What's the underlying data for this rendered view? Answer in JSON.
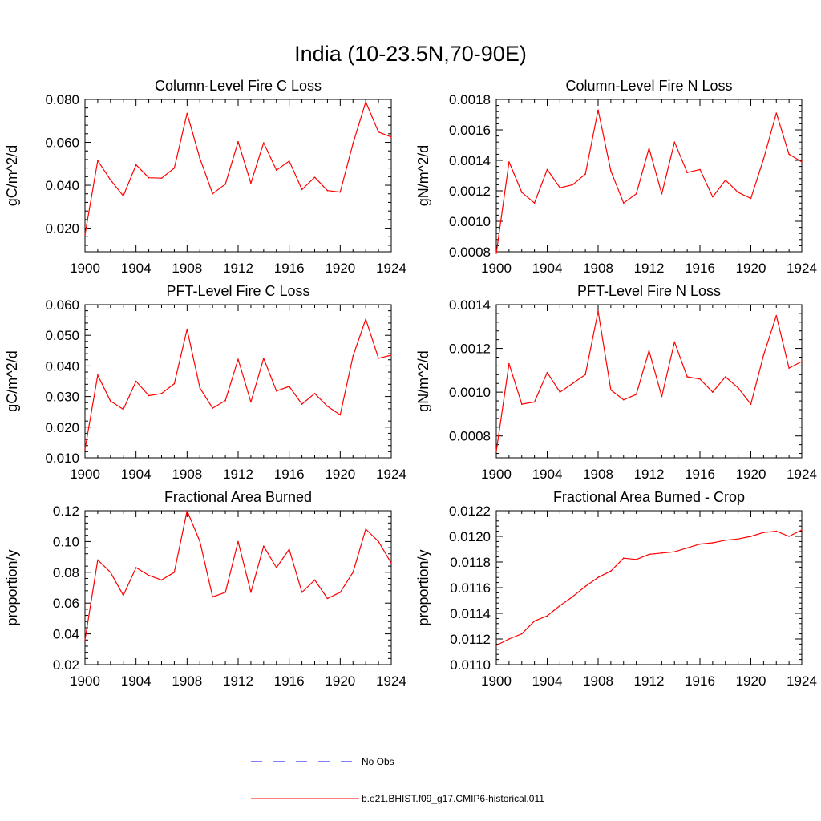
{
  "figure": {
    "title": "India (10-23.5N,70-90E)"
  },
  "legend": {
    "items": [
      {
        "label": "No Obs",
        "color": "#0000ff",
        "dash": "dashed"
      },
      {
        "label": "b.e21.BHIST.f09_g17.CMIP6-historical.011",
        "color": "#ff0000",
        "dash": "solid"
      }
    ]
  },
  "chart_data": [
    {
      "type": "line",
      "title": "Column-Level Fire C Loss",
      "xlabel": "",
      "ylabel": "gC/m^2/d",
      "xlim": [
        1900,
        1924
      ],
      "ylim": [
        0.009,
        0.08
      ],
      "xticks": [
        1900,
        1904,
        1908,
        1912,
        1916,
        1920,
        1924
      ],
      "xtick_labels": [
        "1900",
        "1904",
        "1908",
        "1912",
        "1916",
        "1920",
        "1924"
      ],
      "yticks": [
        0.02,
        0.04,
        0.06,
        0.08
      ],
      "ytick_labels": [
        "0.020",
        "0.040",
        "0.060",
        "0.080"
      ],
      "x": [
        1900,
        1901,
        1902,
        1903,
        1904,
        1905,
        1906,
        1907,
        1908,
        1909,
        1910,
        1911,
        1912,
        1913,
        1914,
        1915,
        1916,
        1917,
        1918,
        1919,
        1920,
        1921,
        1922,
        1923,
        1924
      ],
      "series": [
        {
          "color": "#ff0000",
          "values": [
            0.017,
            0.0515,
            0.0425,
            0.035,
            0.0495,
            0.0435,
            0.0433,
            0.048,
            0.0735,
            0.0525,
            0.036,
            0.0405,
            0.0603,
            0.041,
            0.0598,
            0.047,
            0.0513,
            0.038,
            0.0437,
            0.0375,
            0.0368,
            0.0595,
            0.0788,
            0.0648,
            0.0625
          ]
        }
      ]
    },
    {
      "type": "line",
      "title": "Column-Level Fire N Loss",
      "xlabel": "",
      "ylabel": "gN/m^2/d",
      "xlim": [
        1900,
        1924
      ],
      "ylim": [
        0.0008,
        0.0018
      ],
      "xticks": [
        1900,
        1904,
        1908,
        1912,
        1916,
        1920,
        1924
      ],
      "xtick_labels": [
        "1900",
        "1904",
        "1908",
        "1912",
        "1916",
        "1920",
        "1924"
      ],
      "yticks": [
        0.0008,
        0.001,
        0.0012,
        0.0014,
        0.0016,
        0.0018
      ],
      "ytick_labels": [
        "0.0008",
        "0.0010",
        "0.0012",
        "0.0014",
        "0.0016",
        "0.0018"
      ],
      "x": [
        1900,
        1901,
        1902,
        1903,
        1904,
        1905,
        1906,
        1907,
        1908,
        1909,
        1910,
        1911,
        1912,
        1913,
        1914,
        1915,
        1916,
        1917,
        1918,
        1919,
        1920,
        1921,
        1922,
        1923,
        1924
      ],
      "series": [
        {
          "color": "#ff0000",
          "values": [
            0.00079,
            0.00139,
            0.00119,
            0.00112,
            0.00134,
            0.00122,
            0.00124,
            0.00131,
            0.00173,
            0.00133,
            0.00112,
            0.00118,
            0.00148,
            0.00118,
            0.00152,
            0.00132,
            0.00134,
            0.00116,
            0.00127,
            0.00119,
            0.00115,
            0.00141,
            0.00171,
            0.00144,
            0.00139
          ]
        }
      ]
    },
    {
      "type": "line",
      "title": "PFT-Level Fire C Loss",
      "xlabel": "",
      "ylabel": "gC/m^2/d",
      "xlim": [
        1900,
        1924
      ],
      "ylim": [
        0.01,
        0.06
      ],
      "xticks": [
        1900,
        1904,
        1908,
        1912,
        1916,
        1920,
        1924
      ],
      "xtick_labels": [
        "1900",
        "1904",
        "1908",
        "1912",
        "1916",
        "1920",
        "1924"
      ],
      "yticks": [
        0.01,
        0.02,
        0.03,
        0.04,
        0.05,
        0.06
      ],
      "ytick_labels": [
        "0.010",
        "0.020",
        "0.030",
        "0.040",
        "0.050",
        "0.060"
      ],
      "x": [
        1900,
        1901,
        1902,
        1903,
        1904,
        1905,
        1906,
        1907,
        1908,
        1909,
        1910,
        1911,
        1912,
        1913,
        1914,
        1915,
        1916,
        1917,
        1918,
        1919,
        1920,
        1921,
        1922,
        1923,
        1924
      ],
      "series": [
        {
          "color": "#ff0000",
          "values": [
            0.0128,
            0.037,
            0.0285,
            0.0258,
            0.035,
            0.0303,
            0.031,
            0.0342,
            0.052,
            0.0328,
            0.0262,
            0.0287,
            0.0422,
            0.0282,
            0.0425,
            0.0318,
            0.0333,
            0.0275,
            0.031,
            0.0268,
            0.024,
            0.0432,
            0.0553,
            0.0425,
            0.0435
          ]
        }
      ]
    },
    {
      "type": "line",
      "title": "PFT-Level Fire N Loss",
      "xlabel": "",
      "ylabel": "gN/m^2/d",
      "xlim": [
        1900,
        1924
      ],
      "ylim": [
        0.0007,
        0.0014
      ],
      "xticks": [
        1900,
        1904,
        1908,
        1912,
        1916,
        1920,
        1924
      ],
      "xtick_labels": [
        "1900",
        "1904",
        "1908",
        "1912",
        "1916",
        "1920",
        "1924"
      ],
      "yticks": [
        0.0008,
        0.001,
        0.0012,
        0.0014
      ],
      "ytick_labels": [
        "0.0008",
        "0.0010",
        "0.0012",
        "0.0014"
      ],
      "x": [
        1900,
        1901,
        1902,
        1903,
        1904,
        1905,
        1906,
        1907,
        1908,
        1909,
        1910,
        1911,
        1912,
        1913,
        1914,
        1915,
        1916,
        1917,
        1918,
        1919,
        1920,
        1921,
        1922,
        1923,
        1924
      ],
      "series": [
        {
          "color": "#ff0000",
          "values": [
            0.00073,
            0.00113,
            0.000945,
            0.000955,
            0.00109,
            0.001,
            0.00104,
            0.00108,
            0.00137,
            0.00101,
            0.000965,
            0.00099,
            0.00119,
            0.00098,
            0.00123,
            0.00107,
            0.00106,
            0.001,
            0.00107,
            0.00102,
            0.000945,
            0.00117,
            0.00135,
            0.00111,
            0.00114
          ]
        }
      ]
    },
    {
      "type": "line",
      "title": "Fractional Area Burned",
      "xlabel": "",
      "ylabel": "proportion/y",
      "xlim": [
        1900,
        1924
      ],
      "ylim": [
        0.02,
        0.12
      ],
      "xticks": [
        1900,
        1904,
        1908,
        1912,
        1916,
        1920,
        1924
      ],
      "xtick_labels": [
        "1900",
        "1904",
        "1908",
        "1912",
        "1916",
        "1920",
        "1924"
      ],
      "yticks": [
        0.02,
        0.04,
        0.06,
        0.08,
        0.1,
        0.12
      ],
      "ytick_labels": [
        "0.02",
        "0.04",
        "0.06",
        "0.08",
        "0.10",
        "0.12"
      ],
      "x": [
        1900,
        1901,
        1902,
        1903,
        1904,
        1905,
        1906,
        1907,
        1908,
        1909,
        1910,
        1911,
        1912,
        1913,
        1914,
        1915,
        1916,
        1917,
        1918,
        1919,
        1920,
        1921,
        1922,
        1923,
        1924
      ],
      "series": [
        {
          "color": "#ff0000",
          "values": [
            0.036,
            0.088,
            0.08,
            0.065,
            0.083,
            0.078,
            0.075,
            0.08,
            0.12,
            0.1,
            0.064,
            0.067,
            0.1,
            0.067,
            0.097,
            0.083,
            0.095,
            0.067,
            0.075,
            0.063,
            0.067,
            0.08,
            0.108,
            0.1,
            0.086
          ]
        }
      ]
    },
    {
      "type": "line",
      "title": "Fractional Area Burned - Crop",
      "xlabel": "",
      "ylabel": "proportion/y",
      "xlim": [
        1900,
        1924
      ],
      "ylim": [
        0.011,
        0.0122
      ],
      "xticks": [
        1900,
        1904,
        1908,
        1912,
        1916,
        1920,
        1924
      ],
      "xtick_labels": [
        "1900",
        "1904",
        "1908",
        "1912",
        "1916",
        "1920",
        "1924"
      ],
      "yticks": [
        0.011,
        0.0112,
        0.0114,
        0.0116,
        0.0118,
        0.012,
        0.0122
      ],
      "ytick_labels": [
        "0.0110",
        "0.0112",
        "0.0114",
        "0.0116",
        "0.0118",
        "0.0120",
        "0.0122"
      ],
      "x": [
        1900,
        1901,
        1902,
        1903,
        1904,
        1905,
        1906,
        1907,
        1908,
        1909,
        1910,
        1911,
        1912,
        1913,
        1914,
        1915,
        1916,
        1917,
        1918,
        1919,
        1920,
        1921,
        1922,
        1923,
        1924
      ],
      "series": [
        {
          "color": "#ff0000",
          "values": [
            0.01115,
            0.0112,
            0.01124,
            0.01134,
            0.01138,
            0.01146,
            0.01153,
            0.01161,
            0.01168,
            0.01173,
            0.01183,
            0.01182,
            0.01186,
            0.01187,
            0.01188,
            0.01191,
            0.01194,
            0.01195,
            0.01197,
            0.01198,
            0.012,
            0.01203,
            0.01204,
            0.012,
            0.01205
          ]
        }
      ]
    }
  ]
}
